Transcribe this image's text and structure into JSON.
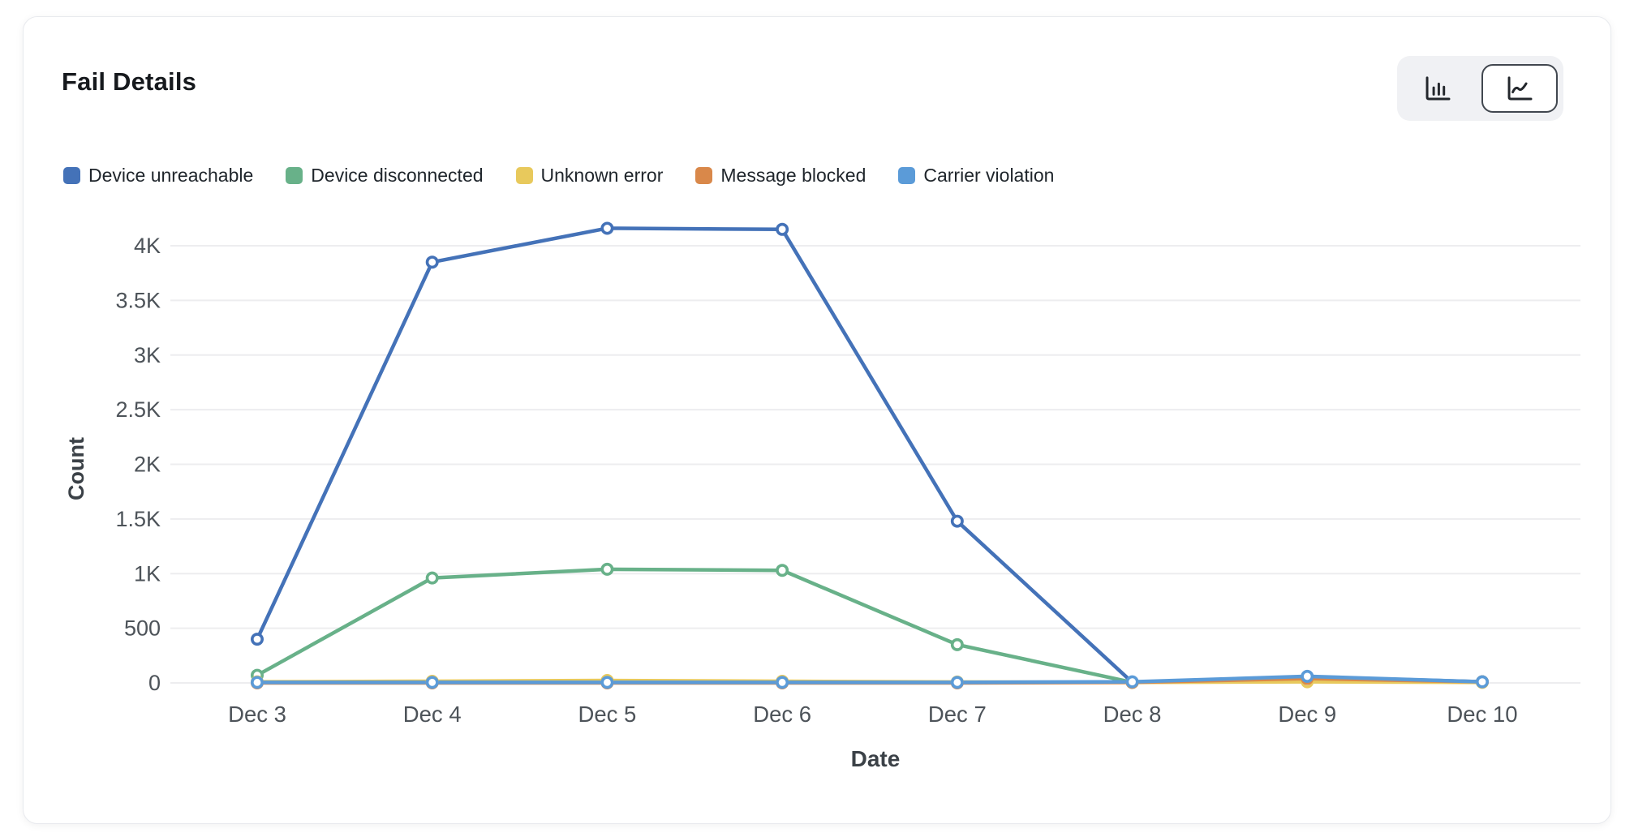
{
  "card": {
    "title": "Fail Details"
  },
  "toolbar": {
    "bar_view": "bar chart view",
    "line_view": "line chart view",
    "selected": "line"
  },
  "chart_data": {
    "type": "line",
    "title": "Fail Details",
    "xlabel": "Date",
    "ylabel": "Count",
    "categories": [
      "Dec 3",
      "Dec 4",
      "Dec 5",
      "Dec 6",
      "Dec 7",
      "Dec 8",
      "Dec 9",
      "Dec 10"
    ],
    "y_ticks": [
      {
        "label": "0",
        "value": 0
      },
      {
        "label": "500",
        "value": 500
      },
      {
        "label": "1K",
        "value": 1000
      },
      {
        "label": "1.5K",
        "value": 1500
      },
      {
        "label": "2K",
        "value": 2000
      },
      {
        "label": "2.5K",
        "value": 2500
      },
      {
        "label": "3K",
        "value": 3000
      },
      {
        "label": "3.5K",
        "value": 3500
      },
      {
        "label": "4K",
        "value": 4000
      }
    ],
    "ylim": [
      0,
      4300
    ],
    "grid": "horizontal",
    "legend_position": "top",
    "marker_style": "open-circle",
    "series": [
      {
        "name": "Device unreachable",
        "color": "#4472b8",
        "values": [
          400,
          3850,
          4160,
          4150,
          1480,
          5,
          55,
          10
        ]
      },
      {
        "name": "Device disconnected",
        "color": "#68b189",
        "values": [
          70,
          960,
          1040,
          1030,
          350,
          5,
          45,
          10
        ]
      },
      {
        "name": "Unknown error",
        "color": "#e8c95c",
        "values": [
          10,
          15,
          22,
          15,
          8,
          5,
          10,
          5
        ]
      },
      {
        "name": "Message blocked",
        "color": "#d9884a",
        "values": [
          0,
          0,
          0,
          0,
          0,
          5,
          40,
          10
        ]
      },
      {
        "name": "Carrier violation",
        "color": "#5b9bd8",
        "values": [
          5,
          5,
          5,
          5,
          5,
          10,
          60,
          10
        ]
      }
    ]
  }
}
